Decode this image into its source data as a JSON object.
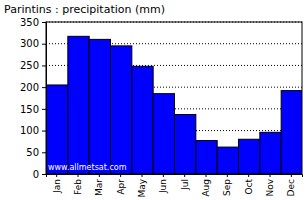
{
  "chart_data": {
    "type": "bar",
    "title": "Parintins : precipitation (mm)",
    "categories": [
      "Jan",
      "Feb",
      "Mar",
      "Apr",
      "May",
      "Jun",
      "Jul",
      "Aug",
      "Sep",
      "Oct",
      "Nov",
      "Dec"
    ],
    "values": [
      205,
      317,
      310,
      295,
      248,
      185,
      137,
      77,
      62,
      80,
      96,
      192
    ],
    "color": "#0000ff",
    "ylim": [
      0,
      350
    ],
    "yticks": [
      0,
      50,
      100,
      150,
      200,
      250,
      300,
      350
    ],
    "grid": true,
    "annotation": "www.allmetsat.com"
  }
}
